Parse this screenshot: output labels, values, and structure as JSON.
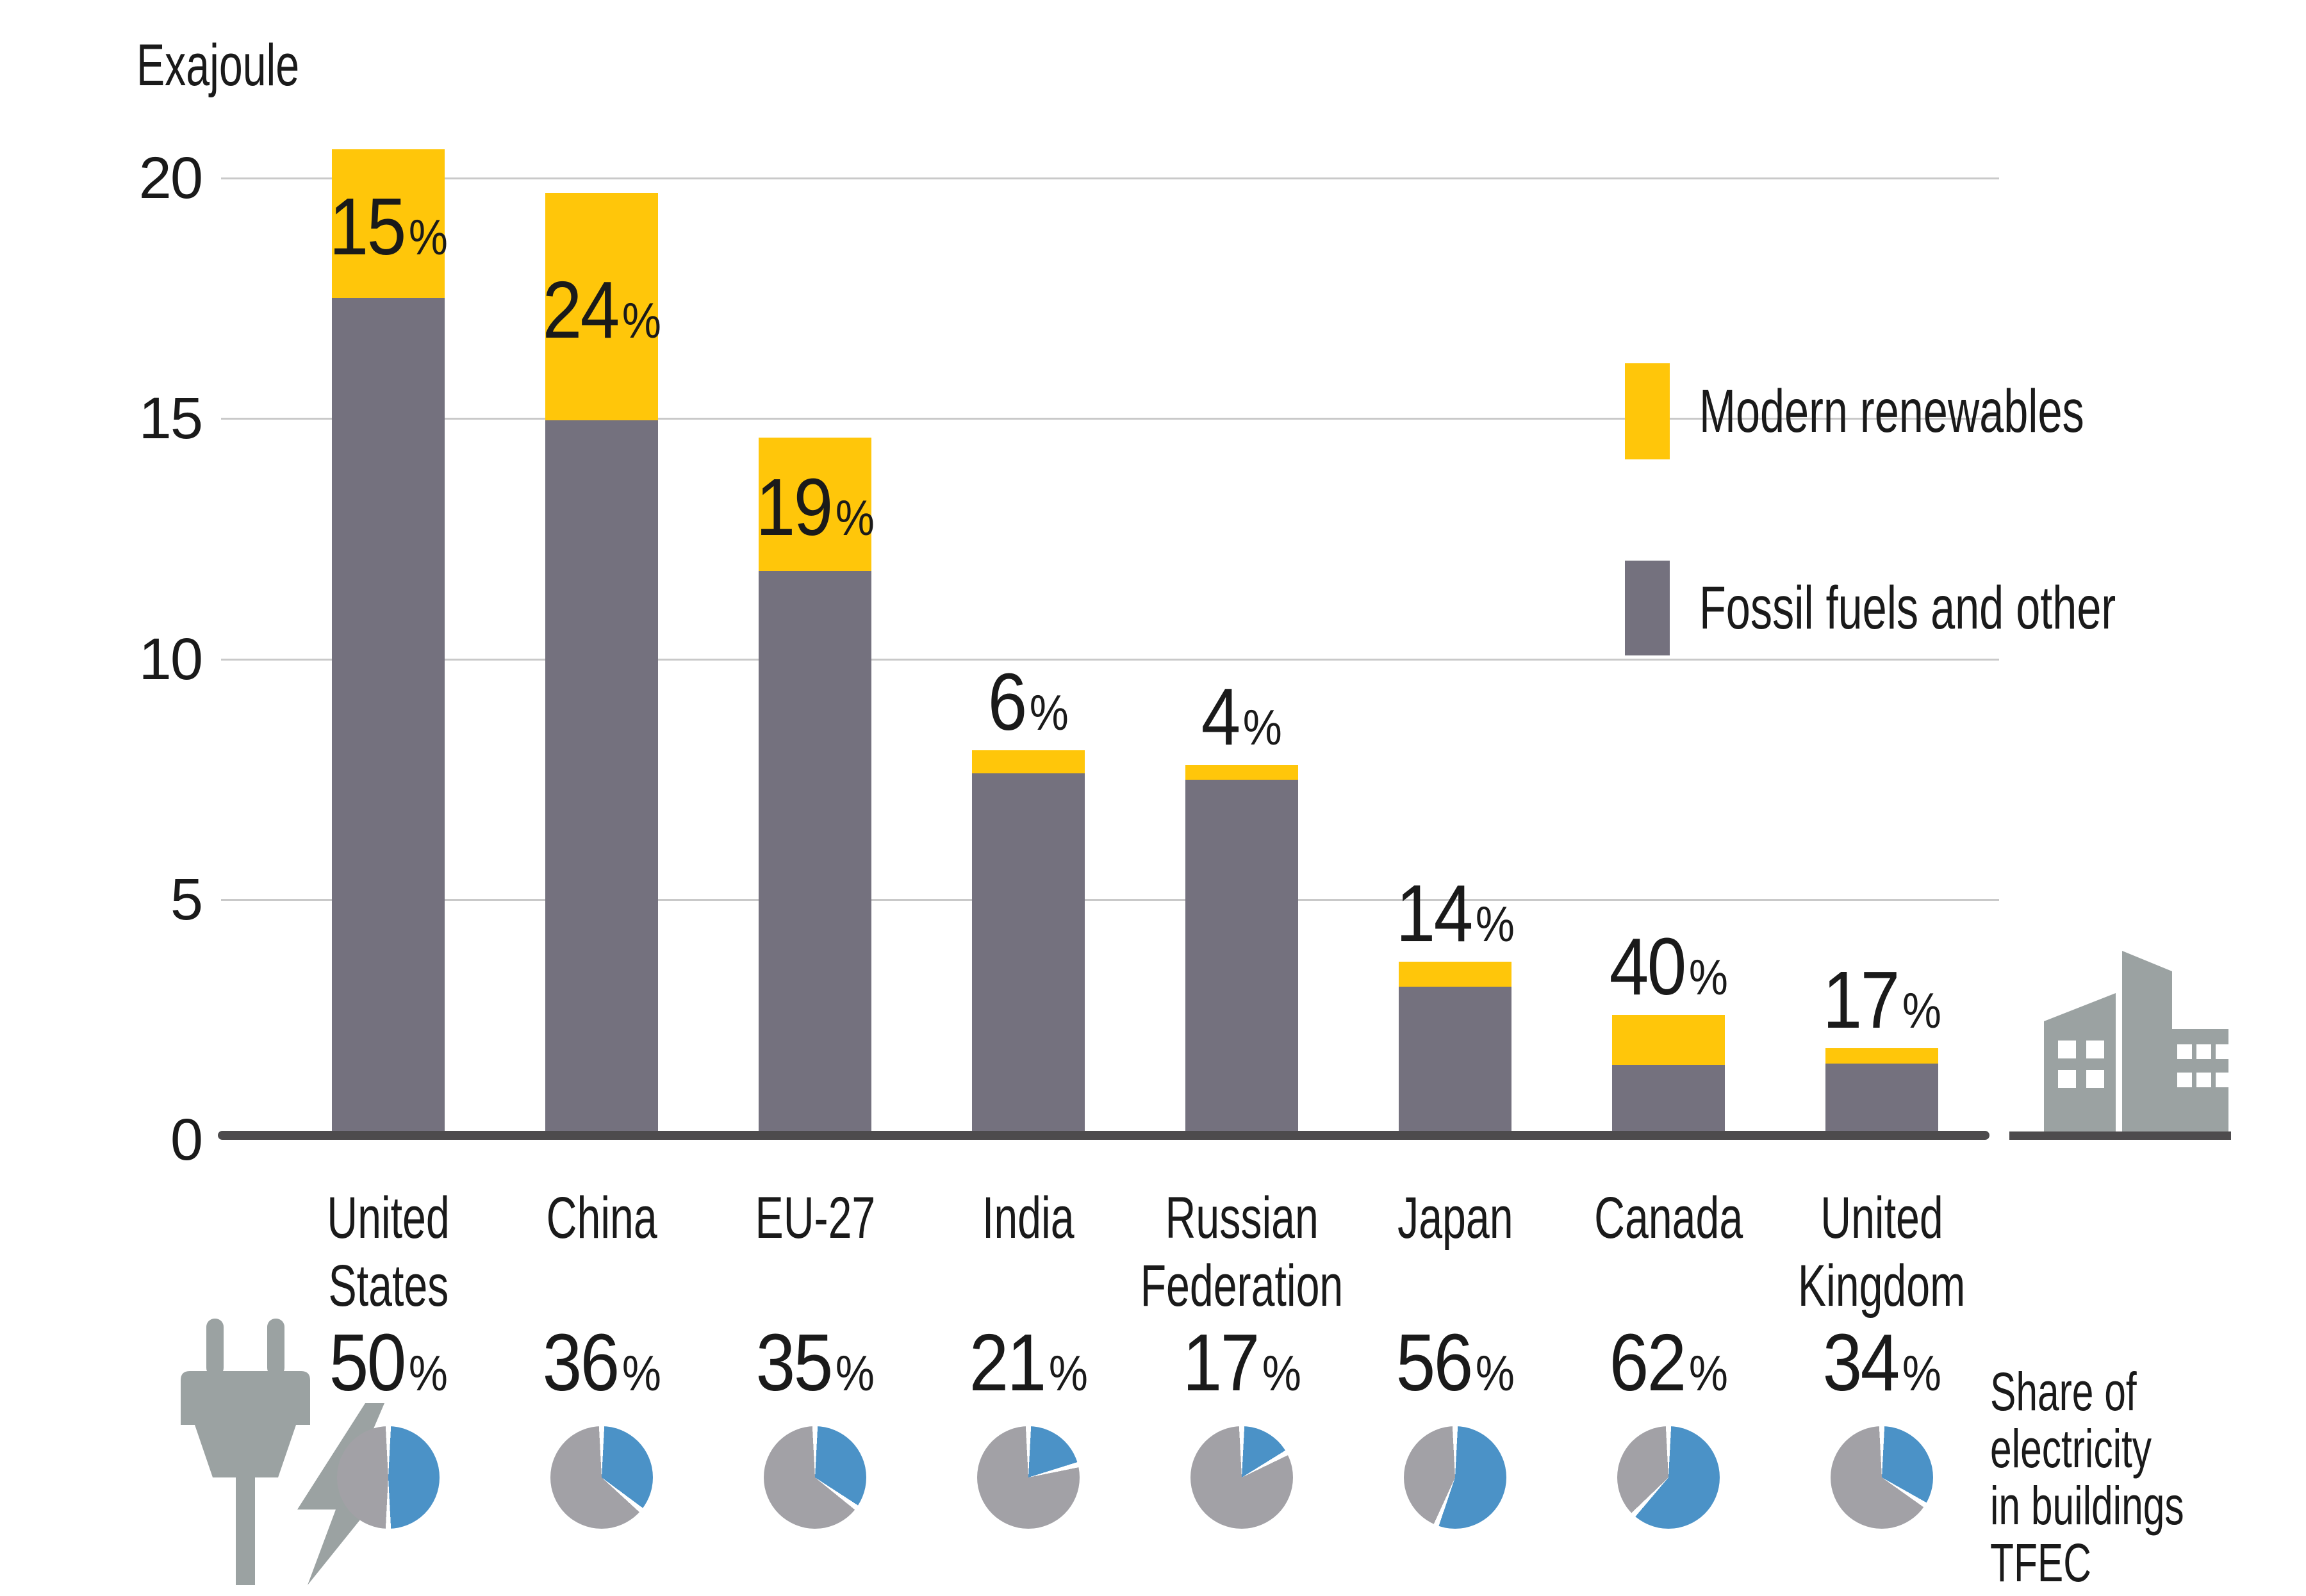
{
  "unit_label": "Exajoule",
  "legend": {
    "renewables": "Modern renewables",
    "fossil": "Fossil fuels and other"
  },
  "pie_caption": {
    "lines": [
      "Share of",
      "electricity",
      "in buildings",
      "TFEC"
    ]
  },
  "colors": {
    "renewables_yellow": "#FFC60A",
    "fossil_gray": "#74717E",
    "pie_blue": "#4B92C7",
    "pie_gray": "#A2A1A6",
    "icon_gray": "#9BA2A2",
    "axis_dark": "#4D4B4D",
    "gridline_gray": "#C9C9C9",
    "text_dark": "#1A1A1A"
  },
  "chart_data": {
    "type": "bar",
    "stacked": true,
    "title": "",
    "ylabel": "Exajoule",
    "xlabel": "",
    "ylim": [
      0,
      20
    ],
    "yticks": [
      0,
      5,
      10,
      15,
      20
    ],
    "grid": true,
    "legend_position": "right",
    "categories": [
      "United States",
      "China",
      "EU-27",
      "India",
      "Russian Federation",
      "Japan",
      "Canada",
      "United Kingdom"
    ],
    "category_label_lines": [
      [
        "United",
        "States"
      ],
      [
        "China"
      ],
      [
        "EU-27"
      ],
      [
        "India"
      ],
      [
        "Russian",
        "Federation"
      ],
      [
        "Japan"
      ],
      [
        "Canada"
      ],
      [
        "United",
        "Kingdom"
      ]
    ],
    "totals_ej": [
      20.6,
      19.7,
      14.6,
      8.1,
      7.8,
      3.7,
      2.6,
      1.9
    ],
    "series": [
      {
        "name": "Modern renewables",
        "share_pct": [
          15,
          24,
          19,
          6,
          4,
          14,
          40,
          17
        ],
        "values_ej": [
          3.09,
          4.73,
          2.77,
          0.49,
          0.31,
          0.52,
          1.04,
          0.32
        ]
      },
      {
        "name": "Fossil fuels and other",
        "values_ej": [
          17.51,
          14.97,
          11.83,
          7.61,
          7.49,
          3.18,
          1.56,
          1.58
        ]
      }
    ],
    "bar_pct_labels": [
      "15",
      "24",
      "19",
      "6",
      "4",
      "14",
      "40",
      "17"
    ],
    "pct_label_inside": [
      true,
      true,
      true,
      false,
      false,
      false,
      false,
      false
    ],
    "pies": {
      "caption_lines": [
        "Share of",
        "electricity",
        "in buildings",
        "TFEC"
      ],
      "values_pct": [
        50,
        36,
        35,
        21,
        17,
        56,
        62,
        34
      ]
    }
  }
}
